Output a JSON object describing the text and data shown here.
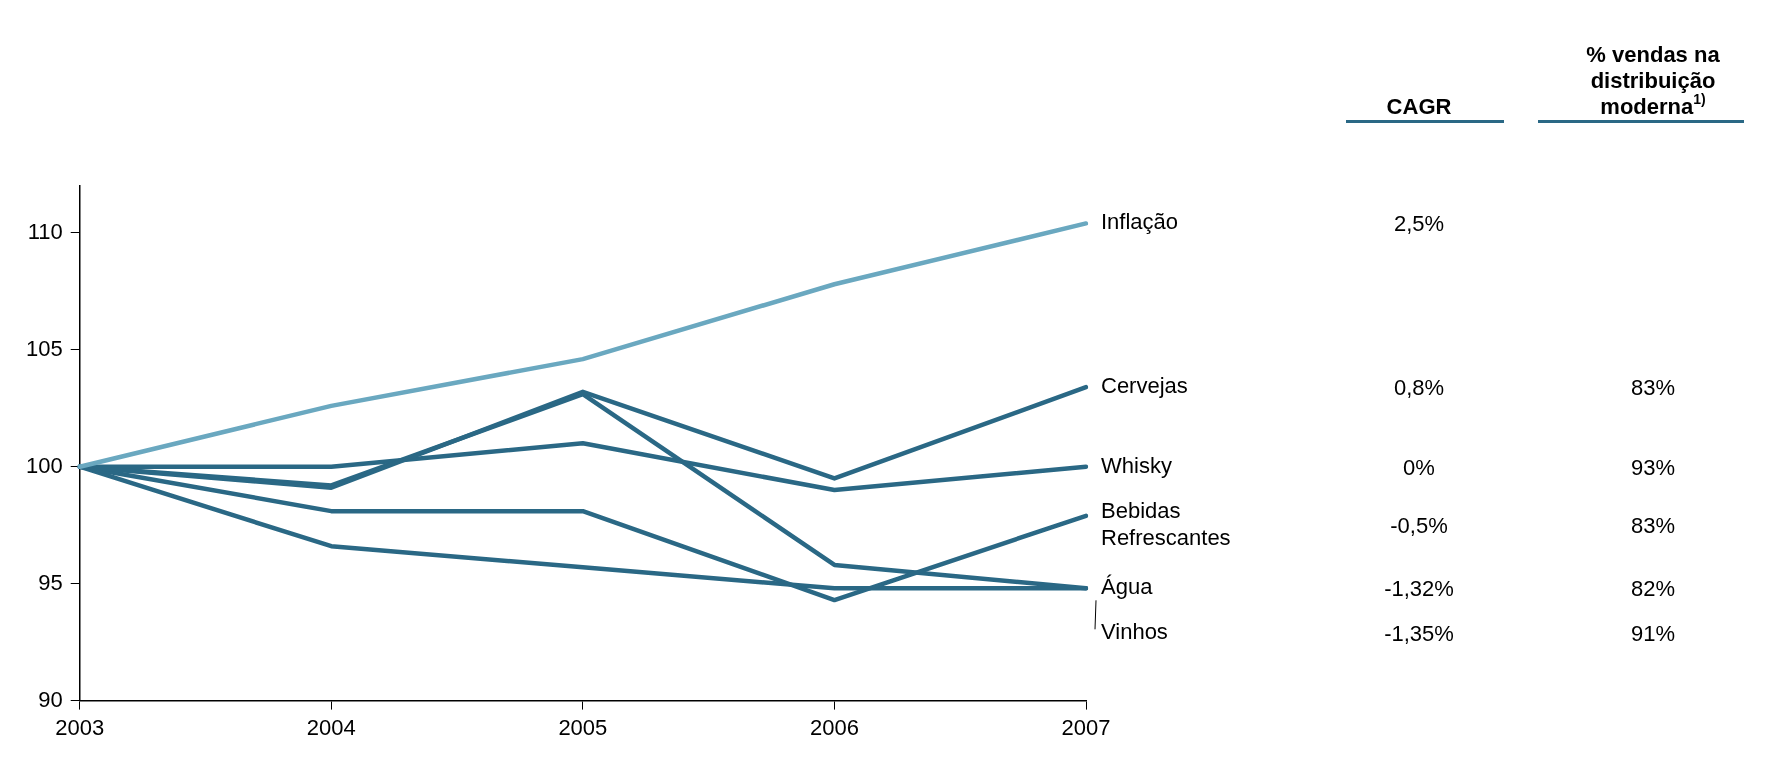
{
  "chart_data": {
    "type": "line",
    "categories": [
      "2003",
      "2004",
      "2005",
      "2006",
      "2007"
    ],
    "series": [
      {
        "name": "Inflação",
        "color": "#6aa8c0",
        "values": [
          100,
          102.6,
          104.6,
          107.8,
          110.4
        ]
      },
      {
        "name": "Cervejas",
        "color": "#2a6885",
        "values": [
          100,
          99.1,
          103.2,
          99.5,
          103.4
        ]
      },
      {
        "name": "Whisky",
        "color": "#2a6885",
        "values": [
          100,
          100,
          101,
          99,
          100
        ]
      },
      {
        "name": "Bebidas Refrescantes",
        "color": "#2a6885",
        "values": [
          100,
          98.1,
          98.1,
          94.3,
          97.9
        ]
      },
      {
        "name": "Água",
        "color": "#2a6885",
        "values": [
          100,
          99.2,
          103.1,
          95.8,
          94.8
        ]
      },
      {
        "name": "Vinhos",
        "color": "#2a6885",
        "values": [
          100,
          96.6,
          95.7,
          94.8,
          94.8
        ]
      }
    ],
    "ylim": [
      90,
      112
    ],
    "yticks": [
      90,
      95,
      100,
      105,
      110
    ],
    "grid": false,
    "legend": false,
    "marker": "none",
    "line_style": "solid",
    "annotations": [
      "CAGR",
      "% vendas na distribuição moderna$^{1)}$",
      "2,5%",
      "0,8%",
      "0%",
      "-0,5%",
      "-1,32%",
      "-1,35%",
      "83%",
      "93%",
      "83%",
      "82%",
      "91%"
    ]
  }
}
